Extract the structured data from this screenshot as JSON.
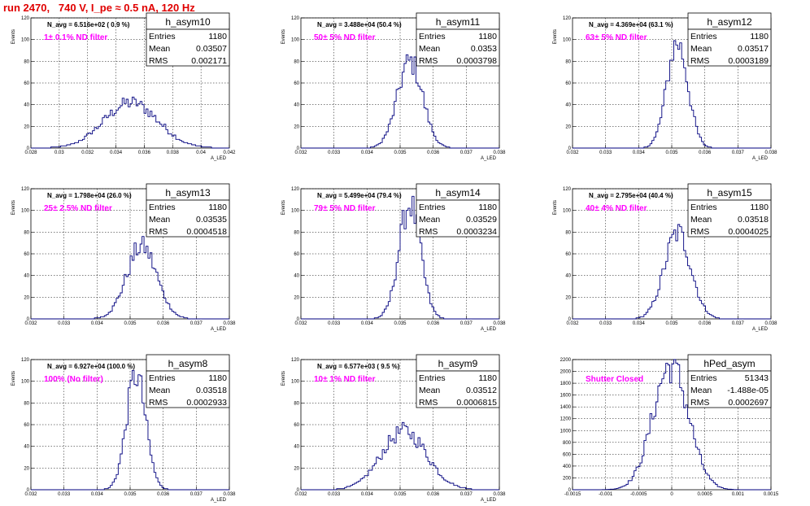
{
  "title": "run 2470,   740 V, I_pe ≈ 0.5 nA, 120 Hz",
  "colors": {
    "title": "#e00000",
    "hist": "#00007f",
    "note": "#ff00ff"
  },
  "chart_data": [
    {
      "type": "histogram",
      "name": "h_asym10",
      "xlim": [
        0.027,
        0.043
      ],
      "ylim": [
        0,
        120
      ],
      "xticks": [
        "0.028",
        "0.03",
        "0.032",
        "0.034",
        "0.036",
        "0.038",
        "0.04",
        "0.042"
      ],
      "yticks": [
        "0",
        "20",
        "40",
        "60",
        "80",
        "100",
        "120"
      ],
      "ylabel": "Events",
      "xlabel": "A_LED",
      "n_avg": "N_avg = 6.516e+02 ( 0.9 %)",
      "note": "1± 0.1% ND filter",
      "stats": {
        "entries": "1180",
        "mean": "0.03507",
        "rms": "0.002171"
      },
      "mean": 0.03507,
      "rms": 0.002171,
      "peak": 42,
      "grid": true
    },
    {
      "type": "histogram",
      "name": "h_asym11",
      "xlim": [
        0.032,
        0.038
      ],
      "ylim": [
        0,
        120
      ],
      "xticks": [
        "0.032",
        "0.033",
        "0.034",
        "0.035",
        "0.036",
        "0.037",
        "0.038"
      ],
      "yticks": [
        "0",
        "20",
        "40",
        "60",
        "80",
        "100",
        "120"
      ],
      "ylabel": "Events",
      "xlabel": "A_LED",
      "n_avg": "N_avg = 3.488e+04 (50.4 %)",
      "note": "50± 5% ND filter",
      "stats": {
        "entries": "1180",
        "mean": "0.0353",
        "rms": "0.0003798"
      },
      "mean": 0.0353,
      "rms": 0.0003798,
      "peak": 80,
      "grid": true
    },
    {
      "type": "histogram",
      "name": "h_asym12",
      "xlim": [
        0.032,
        0.038
      ],
      "ylim": [
        0,
        120
      ],
      "xticks": [
        "0.032",
        "0.033",
        "0.034",
        "0.035",
        "0.036",
        "0.037",
        "0.038"
      ],
      "yticks": [
        "0",
        "20",
        "40",
        "60",
        "80",
        "100",
        "120"
      ],
      "ylabel": "Events",
      "xlabel": "A_LED",
      "n_avg": "N_avg = 4.369e+04 (63.1 %)",
      "note": "63± 5% ND filter",
      "stats": {
        "entries": "1180",
        "mean": "0.03517",
        "rms": "0.0003189"
      },
      "mean": 0.03517,
      "rms": 0.0003189,
      "peak": 97,
      "grid": true
    },
    {
      "type": "histogram",
      "name": "h_asym13",
      "xlim": [
        0.032,
        0.038
      ],
      "ylim": [
        0,
        120
      ],
      "xticks": [
        "0.032",
        "0.033",
        "0.034",
        "0.035",
        "0.036",
        "0.037",
        "0.038"
      ],
      "yticks": [
        "0",
        "20",
        "40",
        "60",
        "80",
        "100",
        "120"
      ],
      "ylabel": "Events",
      "xlabel": "A_LED",
      "n_avg": "N_avg = 1.798e+04 (26.0 %)",
      "note": "25± 2.5% ND filter",
      "stats": {
        "entries": "1180",
        "mean": "0.03535",
        "rms": "0.0004518"
      },
      "mean": 0.03535,
      "rms": 0.0004518,
      "peak": 67,
      "grid": true
    },
    {
      "type": "histogram",
      "name": "h_asym14",
      "xlim": [
        0.032,
        0.038
      ],
      "ylim": [
        0,
        120
      ],
      "xticks": [
        "0.032",
        "0.033",
        "0.034",
        "0.035",
        "0.036",
        "0.037",
        "0.038"
      ],
      "yticks": [
        "0",
        "20",
        "40",
        "60",
        "80",
        "100",
        "120"
      ],
      "ylabel": "Events",
      "xlabel": "A_LED",
      "n_avg": "N_avg = 5.499e+04 (79.4 %)",
      "note": "79± 5% ND filter",
      "stats": {
        "entries": "1180",
        "mean": "0.03529",
        "rms": "0.0003234"
      },
      "mean": 0.03529,
      "rms": 0.0003234,
      "peak": 106,
      "grid": true
    },
    {
      "type": "histogram",
      "name": "h_asym15",
      "xlim": [
        0.032,
        0.038
      ],
      "ylim": [
        0,
        120
      ],
      "xticks": [
        "0.032",
        "0.033",
        "0.034",
        "0.035",
        "0.036",
        "0.037",
        "0.038"
      ],
      "yticks": [
        "0",
        "20",
        "40",
        "60",
        "80",
        "100",
        "120"
      ],
      "ylabel": "Events",
      "xlabel": "A_LED",
      "n_avg": "N_avg = 2.795e+04 (40.4 %)",
      "note": "40± 4% ND filter",
      "stats": {
        "entries": "1180",
        "mean": "0.03518",
        "rms": "0.0004025"
      },
      "mean": 0.03518,
      "rms": 0.0004025,
      "peak": 79,
      "grid": true
    },
    {
      "type": "histogram",
      "name": "h_asym8",
      "xlim": [
        0.032,
        0.038
      ],
      "ylim": [
        0,
        120
      ],
      "xticks": [
        "0.032",
        "0.033",
        "0.034",
        "0.035",
        "0.036",
        "0.037",
        "0.038"
      ],
      "yticks": [
        "0",
        "20",
        "40",
        "60",
        "80",
        "100",
        "120"
      ],
      "ylabel": "Events",
      "xlabel": "A_LED",
      "n_avg": "N_avg = 6.927e+04 (100.0 %)",
      "note": "100% (No filter)",
      "stats": {
        "entries": "1180",
        "mean": "0.03518",
        "rms": "0.0002933"
      },
      "mean": 0.03518,
      "rms": 0.0002933,
      "peak": 106,
      "grid": true
    },
    {
      "type": "histogram",
      "name": "h_asym9",
      "xlim": [
        0.032,
        0.038
      ],
      "ylim": [
        0,
        120
      ],
      "xticks": [
        "0.032",
        "0.033",
        "0.034",
        "0.035",
        "0.036",
        "0.037",
        "0.038"
      ],
      "yticks": [
        "0",
        "20",
        "40",
        "60",
        "80",
        "100",
        "120"
      ],
      "ylabel": "Events",
      "xlabel": "A_LED",
      "n_avg": "N_avg = 6.577e+03 ( 9.5 %)",
      "note": "10± 1% ND filter",
      "stats": {
        "entries": "1180",
        "mean": "0.03512",
        "rms": "0.0006815"
      },
      "mean": 0.03512,
      "rms": 0.0006815,
      "peak": 54,
      "grid": true
    },
    {
      "type": "histogram",
      "name": "hPed_asym",
      "xlim": [
        -0.0015,
        0.0015
      ],
      "ylim": [
        0,
        2200
      ],
      "xticks": [
        "-0.0015",
        "-0.001",
        "-0.0005",
        "0",
        "0.0005",
        "0.001",
        "0.0015"
      ],
      "yticks": [
        "0",
        "200",
        "400",
        "600",
        "800",
        "1000",
        "1200",
        "1400",
        "1600",
        "1800",
        "2000",
        "2200"
      ],
      "ylabel": "",
      "xlabel": "",
      "n_avg": "",
      "note": "Shutter Closed",
      "stats": {
        "entries": "51343",
        "mean": "-1.488e-05",
        "rms": "0.0002697"
      },
      "mean": -1.488e-05,
      "rms": 0.0002697,
      "peak": 2100,
      "grid": true
    }
  ]
}
